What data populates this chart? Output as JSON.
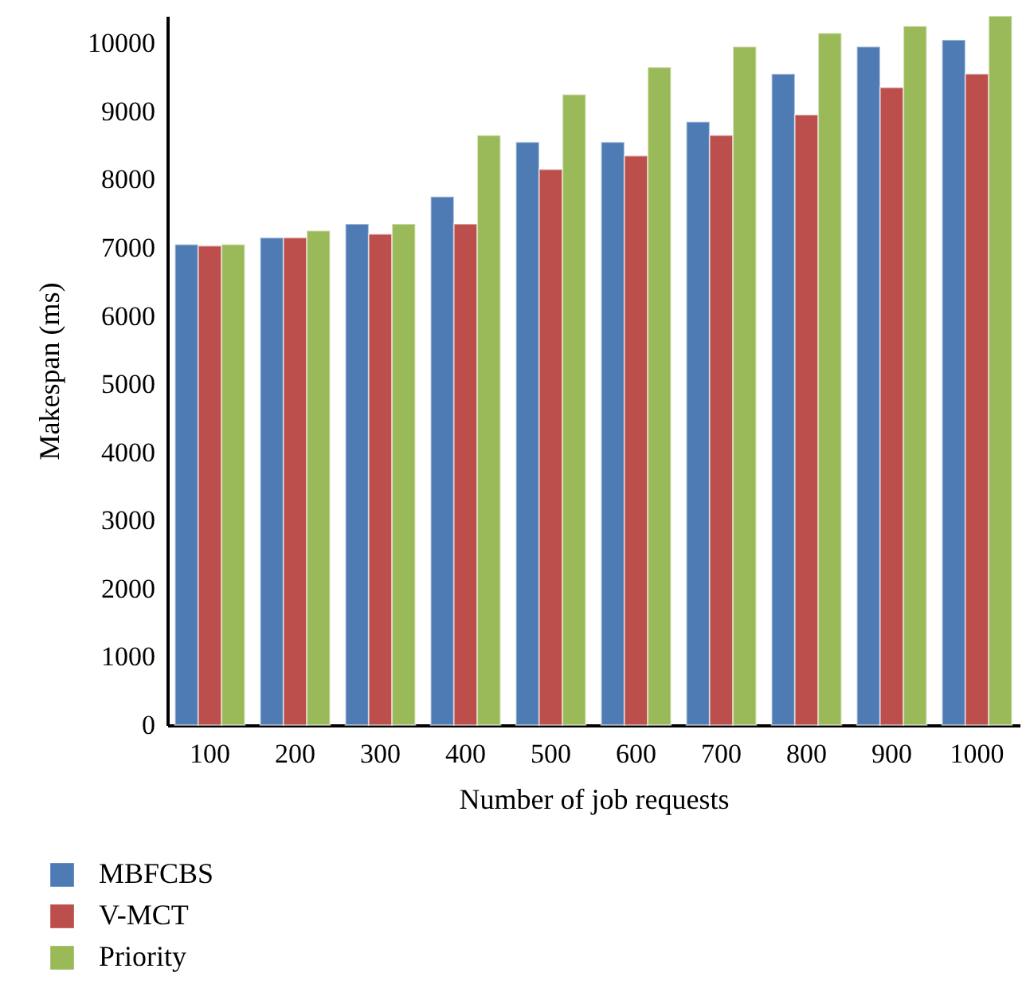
{
  "chart_data": {
    "type": "bar",
    "xlabel": "Number of job requests",
    "ylabel": "Makespan (ms)",
    "categories": [
      "100",
      "200",
      "300",
      "400",
      "500",
      "600",
      "700",
      "800",
      "900",
      "1000"
    ],
    "series": [
      {
        "name": "MBFCBS",
        "color": "#4f7bb5",
        "values": [
          7050,
          7150,
          7350,
          7750,
          8550,
          8550,
          8850,
          9550,
          9950,
          10050
        ]
      },
      {
        "name": "V-MCT",
        "color": "#bc4e4b",
        "values": [
          7030,
          7150,
          7200,
          7350,
          8150,
          8350,
          8650,
          8950,
          9350,
          9550
        ]
      },
      {
        "name": "Priority",
        "color": "#9aba59",
        "values": [
          7050,
          7250,
          7350,
          8650,
          9250,
          9650,
          9950,
          10150,
          10250,
          10400
        ]
      }
    ],
    "ylim": [
      0,
      10400
    ],
    "yticks": [
      0,
      1000,
      2000,
      3000,
      4000,
      5000,
      6000,
      7000,
      8000,
      9000,
      10000
    ],
    "grid": false,
    "legend": "bottom left"
  }
}
